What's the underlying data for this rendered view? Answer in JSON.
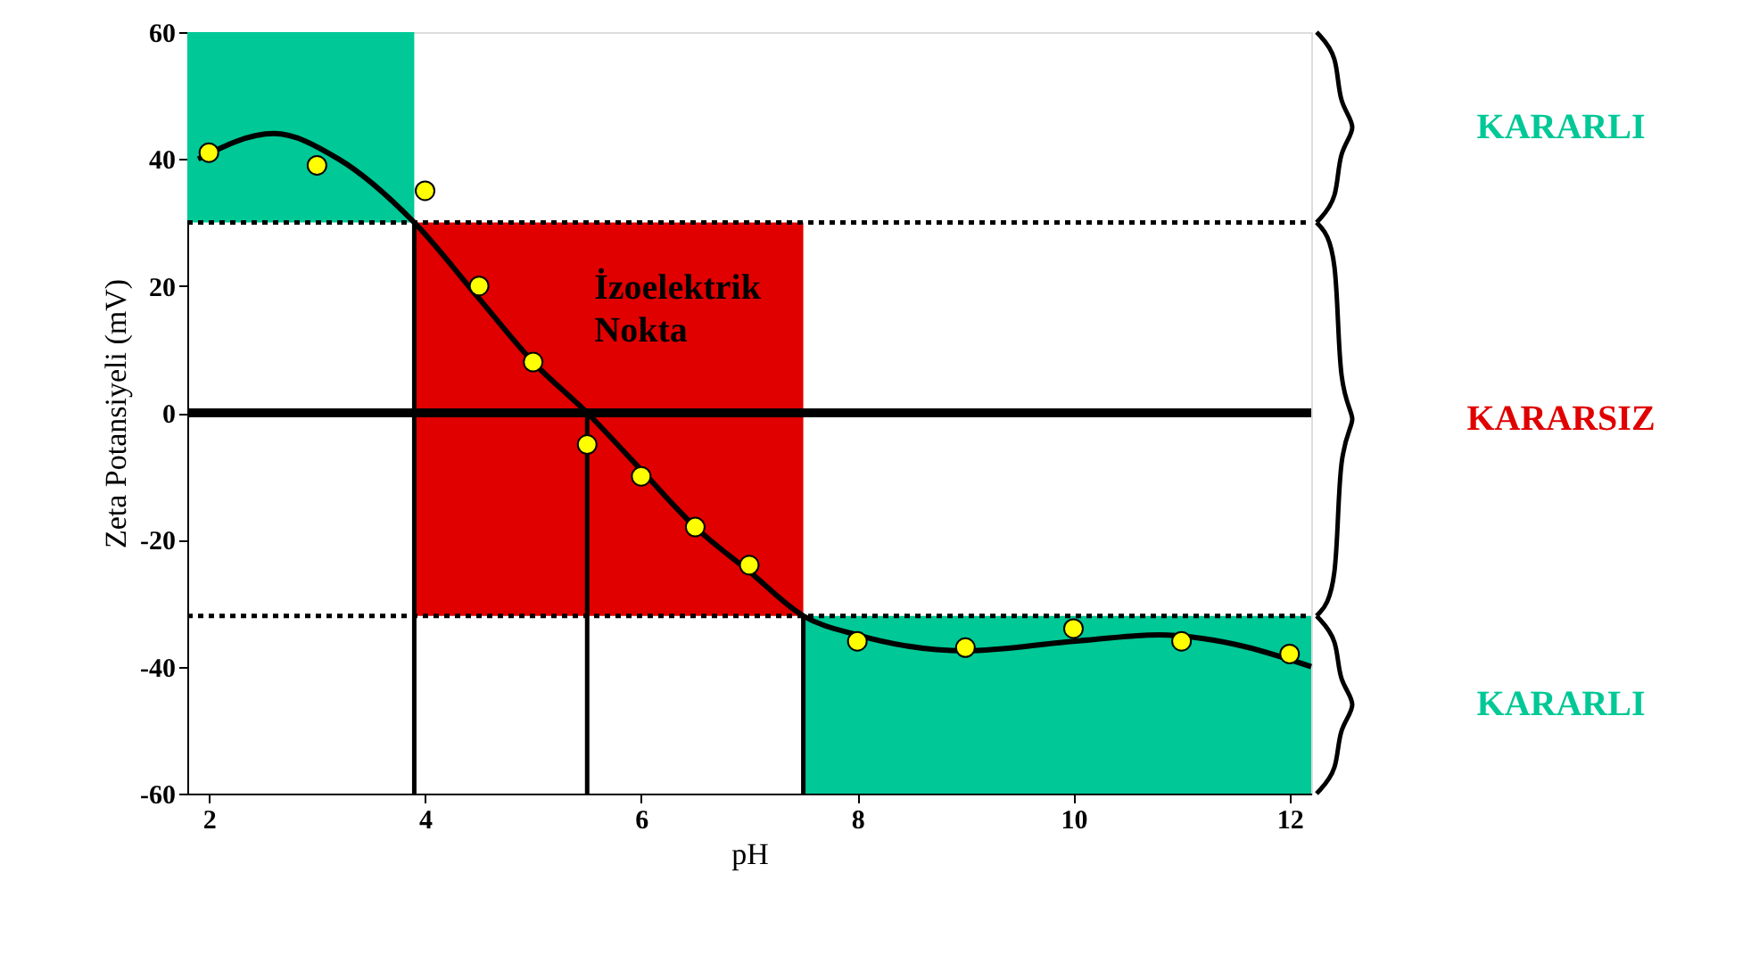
{
  "chart_data": {
    "type": "scatter",
    "xlabel": "pH",
    "ylabel": "Zeta Potansiyeli (mV)",
    "xlim": [
      1.8,
      12.2
    ],
    "ylim": [
      -60,
      60
    ],
    "xticks": [
      2,
      4,
      6,
      8,
      10,
      12
    ],
    "yticks": [
      -60,
      -40,
      -20,
      0,
      20,
      40,
      60
    ],
    "grid": false,
    "series": [
      {
        "type": "line",
        "color": "#000000",
        "marker": "none",
        "x": [
          1.9,
          2.6,
          3.2,
          3.9,
          4.5,
          5.0,
          5.5,
          6.0,
          6.5,
          7.0,
          7.5,
          8.0,
          9.0,
          10.0,
          10.8,
          11.5,
          12.2
        ],
        "values": [
          40,
          44,
          40,
          30,
          18,
          8,
          0,
          -9,
          -18,
          -25,
          -32,
          -35,
          -37.5,
          -36,
          -35,
          -36.5,
          -40
        ]
      },
      {
        "color": "#ffff00",
        "marker": "circle",
        "x": [
          2,
          3,
          4,
          4.5,
          5,
          5.5,
          6,
          6.5,
          7,
          8,
          9,
          10,
          11,
          12
        ],
        "values": [
          41,
          39,
          35,
          20,
          8,
          -5,
          -10,
          -18,
          -24,
          -36,
          -37,
          -34,
          -36,
          -38
        ]
      }
    ],
    "bands": [
      {
        "axis": "y",
        "from": 30,
        "to": 60,
        "label": "KARARLI",
        "color": "#00c896"
      },
      {
        "axis": "y",
        "from": -32,
        "to": 30,
        "label": "KARARSIZ",
        "color": "#e00000"
      },
      {
        "axis": "y",
        "from": -60,
        "to": -32,
        "label": "KARARLI",
        "color": "#00c896"
      }
    ],
    "ref_lines": [
      {
        "axis": "y",
        "value": 30,
        "line_style": "dotted",
        "color": "#000000"
      },
      {
        "axis": "y",
        "value": -32,
        "line_style": "dotted",
        "color": "#000000"
      },
      {
        "axis": "y",
        "value": 0,
        "line_style": "solid",
        "color": "#000000"
      },
      {
        "axis": "x",
        "value": 3.9,
        "line_style": "solid",
        "color": "#000000"
      },
      {
        "axis": "x",
        "value": 5.5,
        "line_style": "solid",
        "color": "#000000"
      },
      {
        "axis": "x",
        "value": 7.5,
        "line_style": "solid",
        "color": "#000000"
      }
    ],
    "annotations": [
      {
        "text": "İzoelektrik Nokta",
        "x": 5.5,
        "y": 0
      }
    ]
  }
}
